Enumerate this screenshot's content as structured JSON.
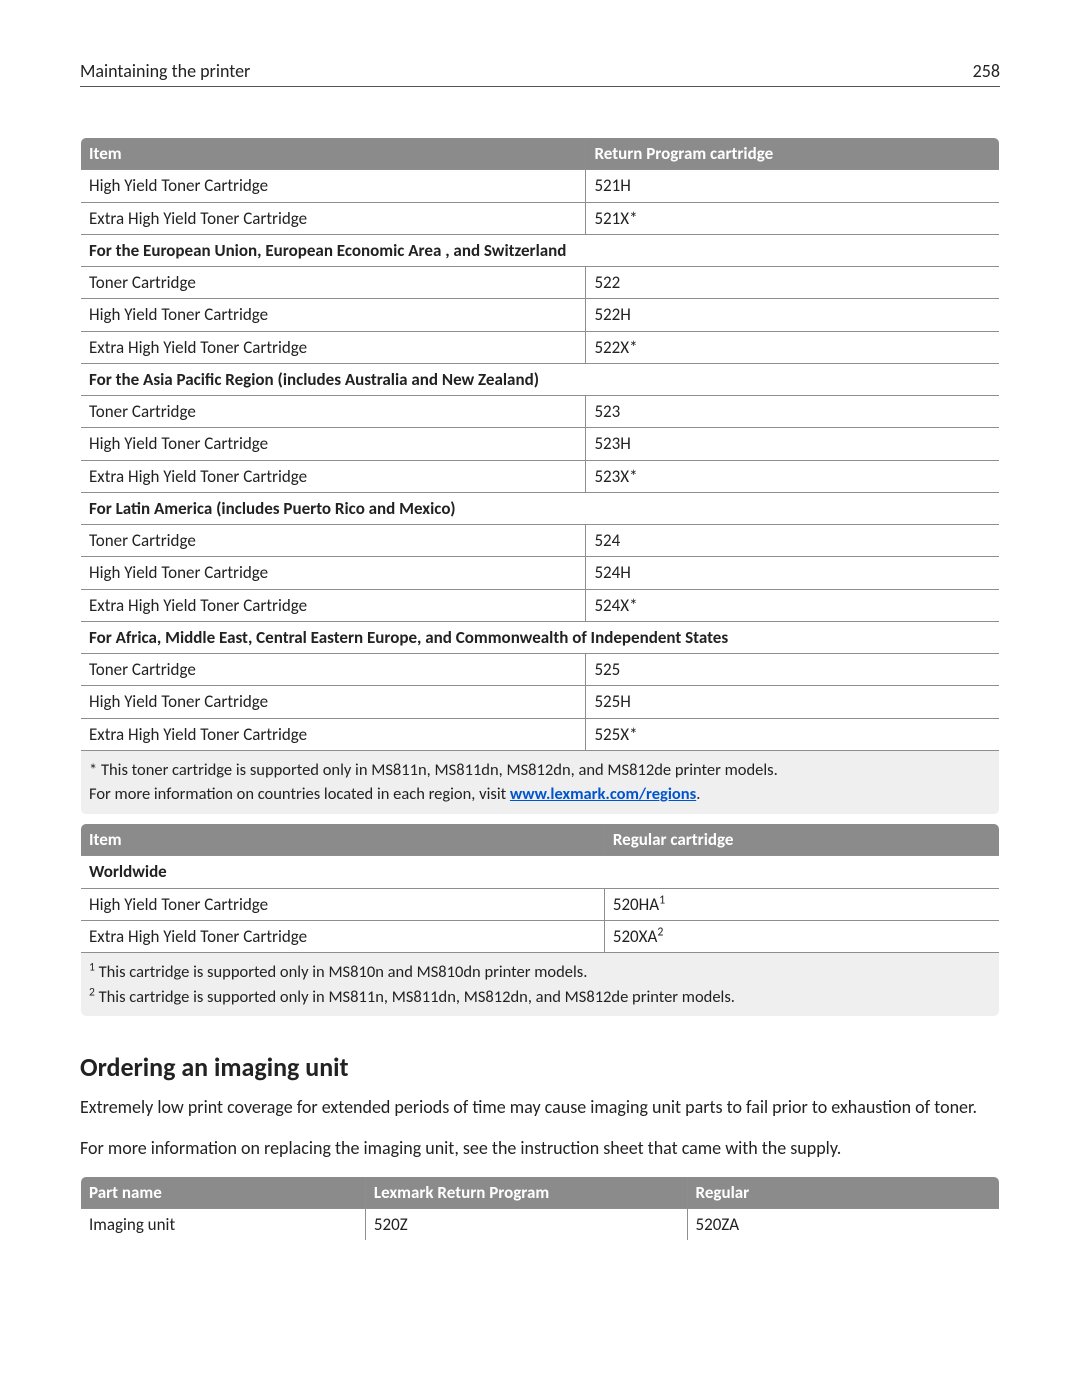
{
  "header": {
    "title": "Maintaining the printer",
    "page": "258"
  },
  "table1": {
    "columns": [
      "Item",
      "Return Program cartridge"
    ],
    "rows": [
      {
        "type": "row",
        "cells": [
          "High Yield Toner Cartridge",
          "521H"
        ]
      },
      {
        "type": "row",
        "cells": [
          "Extra High Yield Toner Cartridge",
          "521X*"
        ]
      },
      {
        "type": "section",
        "text": "For the European Union, European Economic Area , and Switzerland"
      },
      {
        "type": "row",
        "cells": [
          "Toner Cartridge",
          "522"
        ]
      },
      {
        "type": "row",
        "cells": [
          "High Yield Toner Cartridge",
          "522H"
        ]
      },
      {
        "type": "row",
        "cells": [
          "Extra High Yield Toner Cartridge",
          "522X*"
        ]
      },
      {
        "type": "section",
        "text": "For the Asia Pacific Region (includes Australia and New Zealand)"
      },
      {
        "type": "row",
        "cells": [
          "Toner Cartridge",
          "523"
        ]
      },
      {
        "type": "row",
        "cells": [
          "High Yield Toner Cartridge",
          "523H"
        ]
      },
      {
        "type": "row",
        "cells": [
          "Extra High Yield Toner Cartridge",
          "523X*"
        ]
      },
      {
        "type": "section",
        "text": "For Latin America (includes Puerto Rico and Mexico)"
      },
      {
        "type": "row",
        "cells": [
          "Toner Cartridge",
          "524"
        ]
      },
      {
        "type": "row",
        "cells": [
          "High Yield Toner Cartridge",
          "524H"
        ]
      },
      {
        "type": "row",
        "cells": [
          "Extra High Yield Toner Cartridge",
          "524X*"
        ]
      },
      {
        "type": "section",
        "text": "For Africa, Middle East, Central Eastern Europe, and Commonwealth of Independent States"
      },
      {
        "type": "row",
        "cells": [
          "Toner Cartridge",
          "525"
        ]
      },
      {
        "type": "row",
        "cells": [
          "High Yield Toner Cartridge",
          "525H"
        ]
      },
      {
        "type": "row",
        "cells": [
          "Extra High Yield Toner Cartridge",
          "525X*"
        ]
      }
    ],
    "footnote_pre": "* This toner cartridge is supported only in MS811n, MS811dn, MS812dn, and MS812de printer models.",
    "footnote_line2_pre": "For more information on countries located in each region, visit ",
    "footnote_link_text": "www.lexmark.com/regions",
    "footnote_post": "."
  },
  "table2": {
    "columns": [
      "Item",
      "Regular cartridge"
    ],
    "rows": [
      {
        "type": "section",
        "text": "Worldwide"
      },
      {
        "type": "row",
        "cells": [
          "High Yield Toner Cartridge",
          "520HA"
        ],
        "sup": "1"
      },
      {
        "type": "row",
        "cells": [
          "Extra High Yield Toner Cartridge",
          "520XA"
        ],
        "sup": "2"
      }
    ],
    "footnote1_sup": "1",
    "footnote1_text": " This cartridge is supported only in MS810n and MS810dn printer models.",
    "footnote2_sup": "2",
    "footnote2_text": " This cartridge is supported only in MS811n, MS811dn, MS812dn, and MS812de printer models."
  },
  "ordering": {
    "title": "Ordering an imaging unit",
    "para1": "Extremely low print coverage for extended periods of time may cause imaging unit parts to fail prior to exhaustion of toner.",
    "para2": "For more information on replacing the imaging unit, see the instruction sheet that came with the supply."
  },
  "table3": {
    "columns": [
      "Part name",
      "Lexmark Return Program",
      "Regular"
    ],
    "rows": [
      {
        "cells": [
          "Imaging unit",
          "520Z",
          "520ZA"
        ]
      }
    ]
  }
}
